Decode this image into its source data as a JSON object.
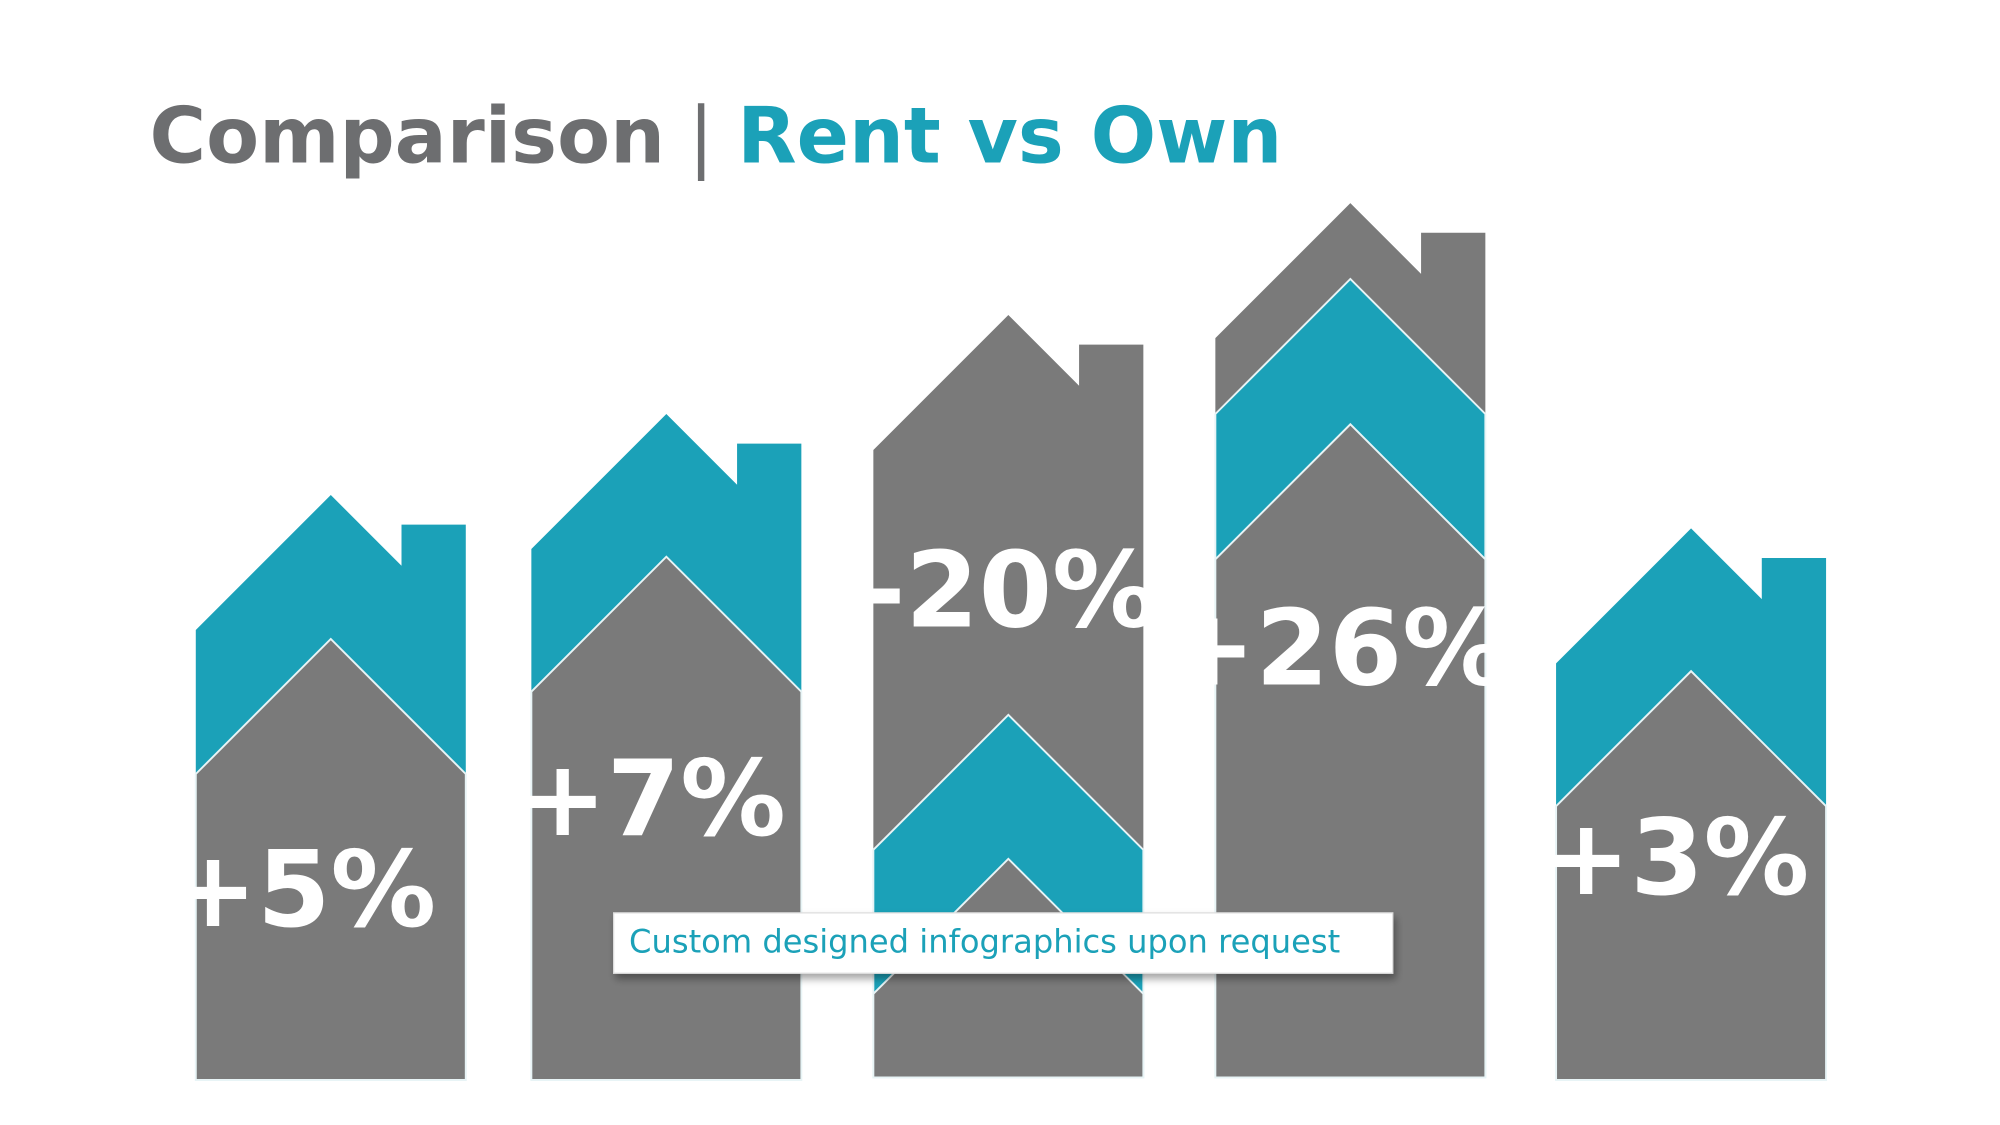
{
  "title": {
    "lead": "Comparison",
    "separator": "|",
    "highlight": "Rent vs Own"
  },
  "houses": [
    {
      "label": "+5%"
    },
    {
      "label": "+7%"
    },
    {
      "label": "-20%"
    },
    {
      "label": "+26%"
    },
    {
      "label": "+3%"
    }
  ],
  "callout": "Custom designed infographics upon request"
}
